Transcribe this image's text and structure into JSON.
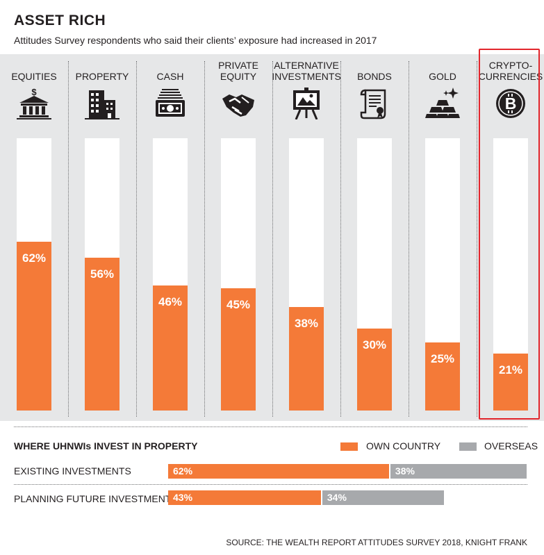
{
  "title": "ASSET RICH",
  "subtitle": "Attitudes Survey respondents who said their clients’ exposure had increased in 2017",
  "colors": {
    "accent": "#f47a38",
    "overseas": "#a7a9ac",
    "highlight": "#e2262c",
    "panel": "#e6e7e8"
  },
  "chart_data": [
    {
      "type": "bar",
      "categories": [
        "EQUITIES",
        "PROPERTY",
        "CASH",
        "PRIVATE EQUITY",
        "ALTERNATIVE INVESTMENTS",
        "BONDS",
        "GOLD",
        "CRYPTO-CURRENCIES"
      ],
      "icons": [
        "bank-icon",
        "buildings-icon",
        "cash-stack-icon",
        "handshake-icon",
        "easel-painting-icon",
        "scroll-icon",
        "gold-bars-icon",
        "bitcoin-icon"
      ],
      "values": [
        62,
        56,
        46,
        45,
        38,
        30,
        25,
        21
      ],
      "value_labels": [
        "62%",
        "56%",
        "46%",
        "45%",
        "38%",
        "30%",
        "25%",
        "21%"
      ],
      "ylim": [
        0,
        100
      ],
      "highlighted": "CRYPTO-CURRENCIES"
    },
    {
      "type": "bar",
      "orientation": "horizontal-stacked",
      "title": "WHERE UHNWIs INVEST IN PROPERTY",
      "categories": [
        "EXISTING INVESTMENTS",
        "PLANNING FUTURE INVESTMENTS"
      ],
      "series": [
        {
          "name": "OWN COUNTRY",
          "values": [
            62,
            43
          ],
          "labels": [
            "62%",
            "43%"
          ]
        },
        {
          "name": "OVERSEAS",
          "values": [
            38,
            34
          ],
          "labels": [
            "38%",
            "34%"
          ]
        }
      ],
      "xlim": [
        0,
        100
      ]
    }
  ],
  "source": "SOURCE: THE WEALTH REPORT ATTITUDES SURVEY 2018, KNIGHT FRANK"
}
